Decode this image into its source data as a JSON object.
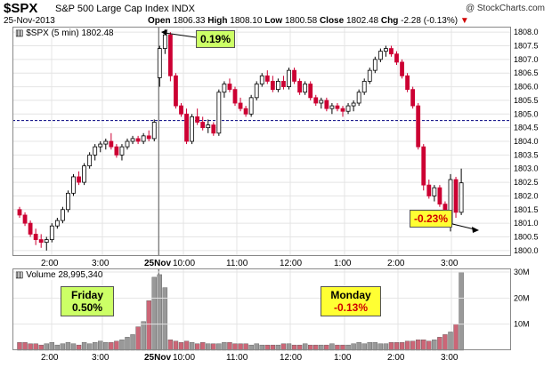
{
  "header": {
    "symbol": "$SPX",
    "name": "S&P 500 Large Cap Index INDX",
    "date": "25-Nov-2013",
    "open_label": "Open",
    "open": "1806.33",
    "high_label": "High",
    "high": "1808.10",
    "low_label": "Low",
    "low": "1800.58",
    "close_label": "Close",
    "close": "1802.48",
    "chg_label": "Chg",
    "chg": "-2.28 (-0.13%)",
    "credit": "@ StockCharts.com"
  },
  "price_label": "$SPX (5 min) 1802.48",
  "volume_label": "Volume 28,995,340",
  "callouts": {
    "open_pct": "0.19%",
    "close_pct": "-0.23%",
    "friday_title": "Friday",
    "friday_pct": "0.50%",
    "monday_title": "Monday",
    "monday_pct": "-0.13%"
  },
  "colors": {
    "up": "#ffffff",
    "down": "#cc0033",
    "vol_up": "#999999",
    "vol_down": "#cc6677",
    "ref": "#000080"
  },
  "chart_data": {
    "type": "candlestick",
    "price_ylim": [
      1799.8,
      1808.2
    ],
    "price_ticks": [
      1800.0,
      1800.5,
      1801.0,
      1801.5,
      1802.0,
      1802.5,
      1803.0,
      1803.5,
      1804.0,
      1804.5,
      1805.0,
      1805.5,
      1806.0,
      1806.5,
      1807.0,
      1807.5,
      1808.0
    ],
    "reference_close": 1804.76,
    "x_ticks": [
      "2:00",
      "3:00",
      "25Nov",
      "10:00",
      "11:00",
      "12:00",
      "1:00",
      "2:00",
      "3:00"
    ],
    "volume_ticks": [
      "10M",
      "20M",
      "30M"
    ],
    "volume_ylim": [
      0,
      30
    ],
    "friday_bars": [
      {
        "o": 1801.5,
        "h": 1801.6,
        "l": 1801.2,
        "c": 1801.3
      },
      {
        "o": 1801.3,
        "h": 1801.4,
        "l": 1800.9,
        "c": 1801.0
      },
      {
        "o": 1801.0,
        "h": 1801.1,
        "l": 1800.5,
        "c": 1800.6
      },
      {
        "o": 1800.6,
        "h": 1800.8,
        "l": 1800.2,
        "c": 1800.4
      },
      {
        "o": 1800.4,
        "h": 1800.6,
        "l": 1800.1,
        "c": 1800.3
      },
      {
        "o": 1800.3,
        "h": 1800.5,
        "l": 1800.0,
        "c": 1800.4
      },
      {
        "o": 1800.4,
        "h": 1801.0,
        "l": 1800.3,
        "c": 1800.9
      },
      {
        "o": 1800.9,
        "h": 1801.2,
        "l": 1800.8,
        "c": 1801.1
      },
      {
        "o": 1801.1,
        "h": 1801.6,
        "l": 1801.0,
        "c": 1801.5
      },
      {
        "o": 1801.5,
        "h": 1802.2,
        "l": 1801.4,
        "c": 1802.1
      },
      {
        "o": 1802.1,
        "h": 1802.8,
        "l": 1802.0,
        "c": 1802.7
      },
      {
        "o": 1802.7,
        "h": 1802.9,
        "l": 1802.4,
        "c": 1802.5
      },
      {
        "o": 1802.5,
        "h": 1803.2,
        "l": 1802.4,
        "c": 1803.1
      },
      {
        "o": 1803.1,
        "h": 1803.6,
        "l": 1803.0,
        "c": 1803.5
      },
      {
        "o": 1803.5,
        "h": 1803.9,
        "l": 1803.3,
        "c": 1803.8
      },
      {
        "o": 1803.8,
        "h": 1804.0,
        "l": 1803.6,
        "c": 1803.9
      },
      {
        "o": 1803.9,
        "h": 1804.1,
        "l": 1803.7,
        "c": 1804.0
      },
      {
        "o": 1804.0,
        "h": 1804.3,
        "l": 1803.7,
        "c": 1803.8
      },
      {
        "o": 1803.8,
        "h": 1803.9,
        "l": 1803.4,
        "c": 1803.5
      },
      {
        "o": 1803.5,
        "h": 1803.9,
        "l": 1803.3,
        "c": 1803.8
      },
      {
        "o": 1803.8,
        "h": 1804.1,
        "l": 1803.7,
        "c": 1804.0
      },
      {
        "o": 1804.0,
        "h": 1804.2,
        "l": 1803.9,
        "c": 1804.1
      },
      {
        "o": 1804.1,
        "h": 1804.2,
        "l": 1803.9,
        "c": 1804.0
      },
      {
        "o": 1804.0,
        "h": 1804.3,
        "l": 1803.9,
        "c": 1804.2
      },
      {
        "o": 1804.2,
        "h": 1804.4,
        "l": 1804.0,
        "c": 1804.1
      },
      {
        "o": 1804.1,
        "h": 1804.8,
        "l": 1804.0,
        "c": 1804.7
      }
    ],
    "monday_bars": [
      {
        "o": 1806.33,
        "h": 1807.5,
        "l": 1806.0,
        "c": 1807.4
      },
      {
        "o": 1807.4,
        "h": 1808.1,
        "l": 1807.2,
        "c": 1807.9
      },
      {
        "o": 1807.9,
        "h": 1808.0,
        "l": 1806.2,
        "c": 1806.4
      },
      {
        "o": 1806.4,
        "h": 1806.5,
        "l": 1805.2,
        "c": 1805.3
      },
      {
        "o": 1805.3,
        "h": 1805.4,
        "l": 1804.9,
        "c": 1805.0
      },
      {
        "o": 1805.0,
        "h": 1805.2,
        "l": 1803.9,
        "c": 1804.0
      },
      {
        "o": 1804.0,
        "h": 1805.0,
        "l": 1803.9,
        "c": 1804.9
      },
      {
        "o": 1804.9,
        "h": 1805.2,
        "l": 1804.6,
        "c": 1804.7
      },
      {
        "o": 1804.7,
        "h": 1804.9,
        "l": 1804.4,
        "c": 1804.5
      },
      {
        "o": 1804.5,
        "h": 1804.8,
        "l": 1804.3,
        "c": 1804.6
      },
      {
        "o": 1804.6,
        "h": 1804.7,
        "l": 1804.2,
        "c": 1804.3
      },
      {
        "o": 1804.3,
        "h": 1805.9,
        "l": 1804.2,
        "c": 1805.8
      },
      {
        "o": 1805.8,
        "h": 1806.2,
        "l": 1805.6,
        "c": 1806.1
      },
      {
        "o": 1806.1,
        "h": 1806.3,
        "l": 1805.8,
        "c": 1805.9
      },
      {
        "o": 1805.9,
        "h": 1806.0,
        "l": 1805.3,
        "c": 1805.4
      },
      {
        "o": 1805.4,
        "h": 1805.6,
        "l": 1805.1,
        "c": 1805.2
      },
      {
        "o": 1805.2,
        "h": 1805.3,
        "l": 1804.9,
        "c": 1805.0
      },
      {
        "o": 1805.0,
        "h": 1805.7,
        "l": 1804.9,
        "c": 1805.6
      },
      {
        "o": 1805.6,
        "h": 1806.2,
        "l": 1805.5,
        "c": 1806.1
      },
      {
        "o": 1806.1,
        "h": 1806.5,
        "l": 1806.0,
        "c": 1806.4
      },
      {
        "o": 1806.4,
        "h": 1806.6,
        "l": 1806.1,
        "c": 1806.2
      },
      {
        "o": 1806.2,
        "h": 1806.4,
        "l": 1805.8,
        "c": 1805.9
      },
      {
        "o": 1805.9,
        "h": 1806.3,
        "l": 1805.8,
        "c": 1806.2
      },
      {
        "o": 1806.2,
        "h": 1806.4,
        "l": 1805.9,
        "c": 1806.0
      },
      {
        "o": 1806.0,
        "h": 1806.7,
        "l": 1805.9,
        "c": 1806.6
      },
      {
        "o": 1806.6,
        "h": 1806.7,
        "l": 1806.1,
        "c": 1806.2
      },
      {
        "o": 1806.2,
        "h": 1806.3,
        "l": 1805.7,
        "c": 1805.8
      },
      {
        "o": 1805.8,
        "h": 1806.2,
        "l": 1805.7,
        "c": 1806.1
      },
      {
        "o": 1806.1,
        "h": 1806.2,
        "l": 1805.5,
        "c": 1805.6
      },
      {
        "o": 1805.6,
        "h": 1805.7,
        "l": 1805.3,
        "c": 1805.4
      },
      {
        "o": 1805.4,
        "h": 1805.6,
        "l": 1805.2,
        "c": 1805.5
      },
      {
        "o": 1805.5,
        "h": 1805.6,
        "l": 1805.1,
        "c": 1805.2
      },
      {
        "o": 1805.2,
        "h": 1805.4,
        "l": 1805.0,
        "c": 1805.3
      },
      {
        "o": 1805.3,
        "h": 1805.4,
        "l": 1805.1,
        "c": 1805.2
      },
      {
        "o": 1805.2,
        "h": 1805.3,
        "l": 1804.9,
        "c": 1805.1
      },
      {
        "o": 1805.1,
        "h": 1805.4,
        "l": 1805.0,
        "c": 1805.3
      },
      {
        "o": 1805.3,
        "h": 1805.5,
        "l": 1805.1,
        "c": 1805.4
      },
      {
        "o": 1805.4,
        "h": 1805.9,
        "l": 1805.3,
        "c": 1805.8
      },
      {
        "o": 1805.8,
        "h": 1806.3,
        "l": 1805.7,
        "c": 1806.2
      },
      {
        "o": 1806.2,
        "h": 1806.7,
        "l": 1806.1,
        "c": 1806.6
      },
      {
        "o": 1806.6,
        "h": 1807.1,
        "l": 1806.5,
        "c": 1807.0
      },
      {
        "o": 1807.0,
        "h": 1807.4,
        "l": 1806.9,
        "c": 1807.3
      },
      {
        "o": 1807.3,
        "h": 1807.5,
        "l": 1807.1,
        "c": 1807.4
      },
      {
        "o": 1807.4,
        "h": 1807.5,
        "l": 1807.1,
        "c": 1807.2
      },
      {
        "o": 1807.2,
        "h": 1807.3,
        "l": 1806.8,
        "c": 1806.9
      },
      {
        "o": 1806.9,
        "h": 1807.0,
        "l": 1806.3,
        "c": 1806.4
      },
      {
        "o": 1806.4,
        "h": 1806.5,
        "l": 1805.8,
        "c": 1805.9
      },
      {
        "o": 1805.9,
        "h": 1806.0,
        "l": 1805.2,
        "c": 1805.3
      },
      {
        "o": 1805.3,
        "h": 1805.4,
        "l": 1803.7,
        "c": 1803.8
      },
      {
        "o": 1803.8,
        "h": 1803.9,
        "l": 1802.2,
        "c": 1802.4
      },
      {
        "o": 1802.4,
        "h": 1802.6,
        "l": 1801.9,
        "c": 1802.0
      },
      {
        "o": 1802.0,
        "h": 1802.4,
        "l": 1801.8,
        "c": 1802.3
      },
      {
        "o": 1802.3,
        "h": 1802.4,
        "l": 1801.6,
        "c": 1801.7
      },
      {
        "o": 1801.7,
        "h": 1801.8,
        "l": 1800.9,
        "c": 1801.0
      },
      {
        "o": 1801.0,
        "h": 1802.8,
        "l": 1800.7,
        "c": 1802.6
      },
      {
        "o": 1802.6,
        "h": 1802.7,
        "l": 1801.2,
        "c": 1801.4
      },
      {
        "o": 1801.4,
        "h": 1803.0,
        "l": 1801.3,
        "c": 1802.48
      }
    ],
    "friday_volume": [
      3,
      3,
      2.5,
      2.5,
      2,
      2.5,
      3,
      2,
      2.5,
      3,
      2.5,
      2,
      3,
      2.5,
      3,
      3.5,
      3,
      3,
      3.5,
      4,
      5,
      6,
      9,
      11,
      19,
      28
    ],
    "monday_volume": [
      29,
      24,
      4,
      3.5,
      3,
      3.5,
      3,
      2.5,
      3,
      2.5,
      2.5,
      2.5,
      3,
      3,
      2.5,
      2.5,
      2.5,
      2,
      2.5,
      2,
      2,
      2,
      2,
      2.5,
      2.5,
      2,
      2,
      2.5,
      2,
      2,
      2,
      2,
      2.5,
      2,
      2,
      2,
      2.5,
      3,
      2.5,
      3,
      3,
      2.5,
      2.5,
      3,
      3,
      3,
      3.5,
      3.5,
      4,
      4,
      3.5,
      4,
      5,
      6,
      7,
      10,
      30
    ]
  }
}
